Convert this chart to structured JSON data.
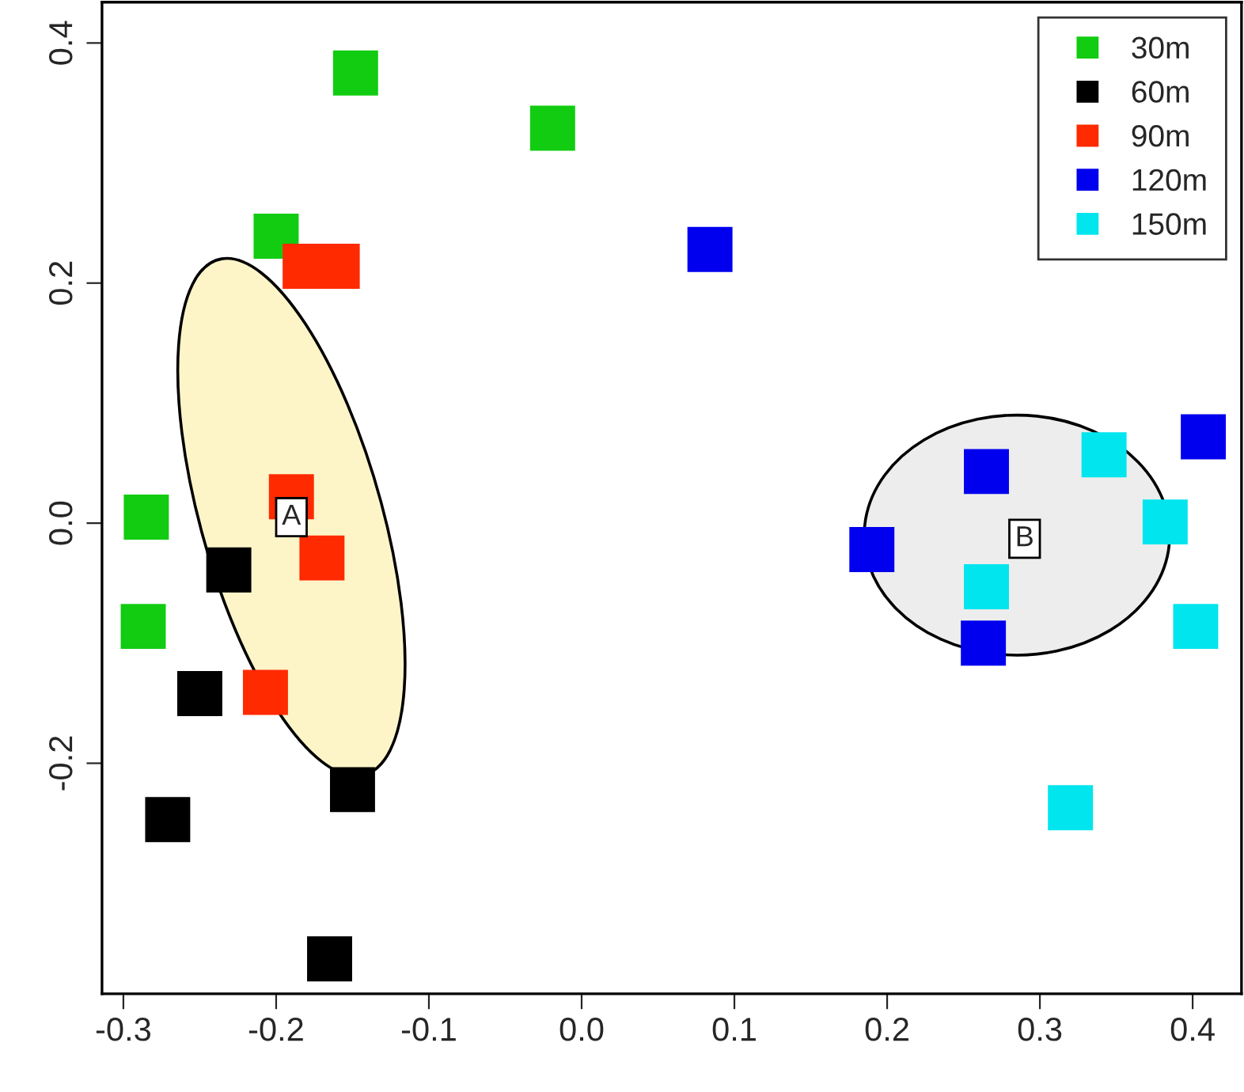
{
  "chart_data": {
    "type": "scatter",
    "marker": "square",
    "legend": "top right",
    "grid": false,
    "xlim": [
      -0.314,
      0.432
    ],
    "ylim": [
      -0.392,
      0.434
    ],
    "xticks": [
      -0.3,
      -0.2,
      -0.1,
      {
        "value": 0,
        "label": "0.0"
      },
      0.1,
      0.2,
      0.3,
      0.4
    ],
    "yticks": [
      -0.2,
      {
        "value": 0,
        "label": "0.0"
      },
      0.2,
      0.4
    ],
    "annotations": [
      {
        "text": "A",
        "x": -0.19,
        "y": 0.005
      },
      {
        "text": "B",
        "x": 0.29,
        "y": -0.013
      }
    ],
    "series": [
      {
        "name": "30m",
        "color": "#11cc11",
        "x": [
          -0.148,
          -0.019,
          -0.2,
          -0.285,
          -0.287
        ],
        "values": [
          0.375,
          0.329,
          0.239,
          0.005,
          -0.086
        ]
      },
      {
        "name": "60m",
        "color": "#000000",
        "x": [
          -0.231,
          -0.25,
          -0.271,
          -0.15,
          -0.165
        ],
        "values": [
          -0.039,
          -0.142,
          -0.247,
          -0.222,
          -0.363
        ]
      },
      {
        "name": "90m",
        "color": "#ff2a00",
        "x": [
          -0.181,
          -0.16,
          -0.19,
          -0.17,
          -0.207
        ],
        "values": [
          0.214,
          0.214,
          0.022,
          -0.029,
          -0.141
        ]
      },
      {
        "name": "120m",
        "color": "#0000ee",
        "x": [
          0.084,
          0.19,
          0.265,
          0.263,
          0.407
        ],
        "values": [
          0.228,
          -0.022,
          0.043,
          -0.1,
          0.072
        ]
      },
      {
        "name": "150m",
        "color": "#00e5ee",
        "x": [
          0.342,
          0.382,
          0.265,
          0.402,
          0.32
        ],
        "values": [
          0.057,
          0.001,
          -0.053,
          -0.086,
          -0.237
        ]
      }
    ]
  }
}
